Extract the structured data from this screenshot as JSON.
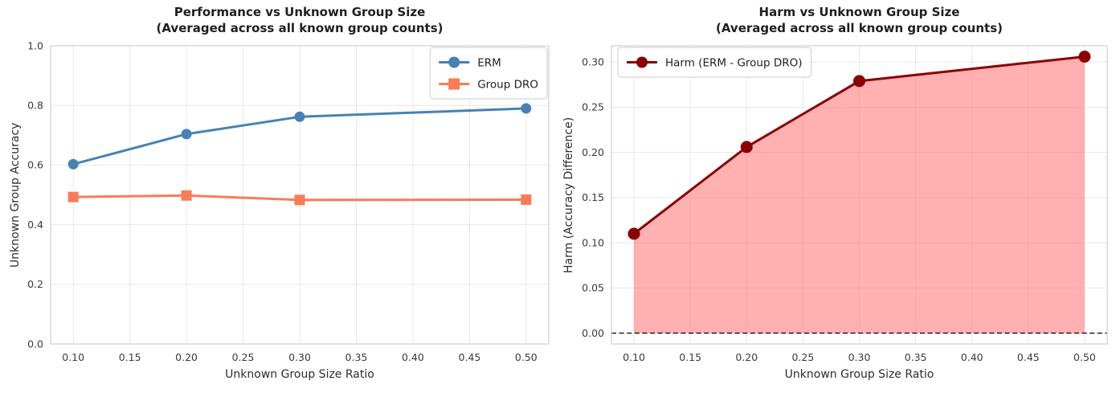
{
  "figure": {
    "background": "#ffffff",
    "title_color": "#1f1f1f",
    "tick_label_color": "#3a3a3a",
    "grid_color": "#e8e8e8",
    "spine_color": "#cfcfcf"
  },
  "chart_data": [
    {
      "id": "performance",
      "type": "line",
      "title": "Performance vs Unknown Group Size",
      "subtitle": "(Averaged across all known group counts)",
      "xlabel": "Unknown Group Size Ratio",
      "ylabel": "Unknown Group Accuracy",
      "x": [
        0.1,
        0.2,
        0.3,
        0.5
      ],
      "series": [
        {
          "name": "ERM",
          "values": [
            0.603,
            0.704,
            0.762,
            0.79
          ],
          "color": "#4682B4",
          "marker": "circle",
          "marker_size": 6.5,
          "line_width": 3
        },
        {
          "name": "Group DRO",
          "values": [
            0.493,
            0.498,
            0.483,
            0.484
          ],
          "color": "#F97C56",
          "marker": "square",
          "marker_size": 6.5,
          "line_width": 3
        }
      ],
      "xlim": [
        0.08,
        0.52
      ],
      "ylim": [
        0.0,
        1.0
      ],
      "xticks": [
        0.1,
        0.15,
        0.2,
        0.25,
        0.3,
        0.35,
        0.4,
        0.45,
        0.5
      ],
      "xtick_labels": [
        "0.10",
        "0.15",
        "0.20",
        "0.25",
        "0.30",
        "0.35",
        "0.40",
        "0.45",
        "0.50"
      ],
      "yticks": [
        0.0,
        0.2,
        0.4,
        0.6,
        0.8,
        1.0
      ],
      "ytick_labels": [
        "0.0",
        "0.2",
        "0.4",
        "0.6",
        "0.8",
        "1.0"
      ],
      "grid": true,
      "legend_position": "top-right"
    },
    {
      "id": "harm",
      "type": "line",
      "title": "Harm vs Unknown Group Size",
      "subtitle": "(Averaged across all known group counts)",
      "xlabel": "Unknown Group Size Ratio",
      "ylabel": "Harm (Accuracy Difference)",
      "x": [
        0.1,
        0.2,
        0.3,
        0.5
      ],
      "series": [
        {
          "name": "Harm (ERM - Group DRO)",
          "values": [
            0.11,
            0.206,
            0.279,
            0.306
          ],
          "color": "#8B0000",
          "marker": "circle",
          "marker_size": 7.5,
          "line_width": 3,
          "fill_to_zero": true,
          "fill_color": "#FF7070",
          "fill_opacity": 0.55
        }
      ],
      "xlim": [
        0.08,
        0.52
      ],
      "ylim": [
        -0.012,
        0.318
      ],
      "xticks": [
        0.1,
        0.15,
        0.2,
        0.25,
        0.3,
        0.35,
        0.4,
        0.45,
        0.5
      ],
      "xtick_labels": [
        "0.10",
        "0.15",
        "0.20",
        "0.25",
        "0.30",
        "0.35",
        "0.40",
        "0.45",
        "0.50"
      ],
      "yticks": [
        0.0,
        0.05,
        0.1,
        0.15,
        0.2,
        0.25,
        0.3
      ],
      "ytick_labels": [
        "0.00",
        "0.05",
        "0.10",
        "0.15",
        "0.20",
        "0.25",
        "0.30"
      ],
      "grid": true,
      "zero_line": {
        "y": 0,
        "color": "#000000",
        "dash": "6 3.6",
        "width": 1.3
      },
      "legend_position": "top-left"
    }
  ]
}
